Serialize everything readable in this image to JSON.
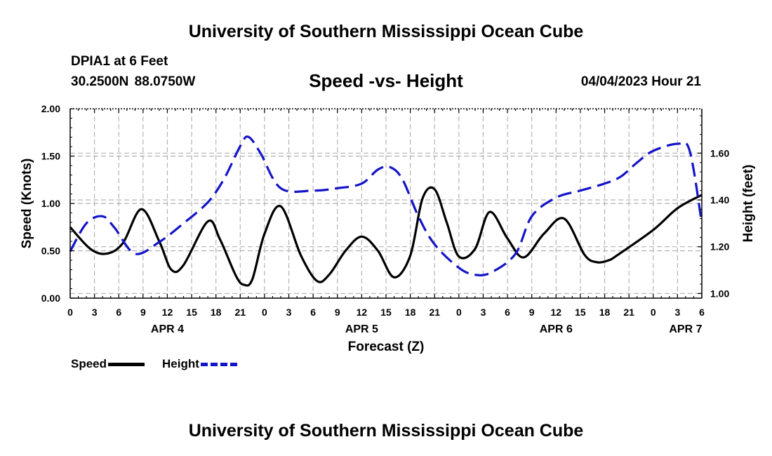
{
  "header": {
    "main_title": "University of Southern Mississippi Ocean Cube",
    "station_name": "DPIA1 at 6 Feet",
    "station_coords": "30.2500N  88.0750W",
    "chart_title": "Speed -vs- Height",
    "datetime": "04/04/2023 Hour 21"
  },
  "footer": {
    "title": "University of Southern Mississippi Ocean Cube"
  },
  "legend": {
    "speed_label": "Speed",
    "height_label": "Height"
  },
  "colors": {
    "speed": "#000000",
    "height": "#1414c8",
    "grid": "#b4b4b4"
  },
  "chart_data": {
    "type": "line",
    "title": "Speed -vs- Height",
    "xlabel": "Forecast (Z)",
    "ylabel_left": "Speed (Knots)",
    "ylabel_right": "Height (feet)",
    "x_unit": "hours from APR 4 00Z",
    "xlim": [
      0,
      78
    ],
    "ylim_left": [
      0,
      2
    ],
    "ylim_right": [
      0.98,
      1.79
    ],
    "x_tick_values": [
      0,
      3,
      6,
      9,
      12,
      15,
      18,
      21,
      24,
      27,
      30,
      33,
      36,
      39,
      42,
      45,
      48,
      51,
      54,
      57,
      60,
      63,
      66,
      69,
      72,
      75,
      78
    ],
    "x_tick_labels": [
      "0",
      "3",
      "6",
      "9",
      "12",
      "15",
      "18",
      "21",
      "0",
      "3",
      "6",
      "9",
      "12",
      "15",
      "18",
      "21",
      "0",
      "3",
      "6",
      "9",
      "12",
      "15",
      "18",
      "21",
      "0",
      "3",
      "6"
    ],
    "day_labels": [
      {
        "x": 12,
        "label": "APR 4"
      },
      {
        "x": 36,
        "label": "APR 5"
      },
      {
        "x": 60,
        "label": "APR 6"
      },
      {
        "x": 76,
        "label": "APR 7"
      }
    ],
    "y_left_ticks": [
      0,
      0.5,
      1.0,
      1.5,
      2.0
    ],
    "y_left_tick_labels": [
      "0.00",
      "0.50",
      "1.00",
      "1.50",
      "2.00"
    ],
    "y_right_ticks": [
      1.0,
      1.2,
      1.4,
      1.6
    ],
    "y_right_tick_labels": [
      "1.00",
      "1.20",
      "1.40",
      "1.60"
    ],
    "grid": true,
    "series": [
      {
        "name": "Speed",
        "axis": "left",
        "style": "solid",
        "x": [
          0,
          2.5,
          4.5,
          6.5,
          8.8,
          11,
          12.5,
          14,
          17,
          18.5,
          20.5,
          21.5,
          22.5,
          24,
          26,
          28.5,
          30.5,
          32,
          34,
          36,
          38,
          40,
          42,
          43.5,
          45,
          46.5,
          48,
          50,
          51.8,
          54,
          56,
          58.5,
          61,
          63.5,
          65,
          66.5,
          67.5,
          72,
          75,
          78
        ],
        "y": [
          0.75,
          0.52,
          0.47,
          0.58,
          0.94,
          0.6,
          0.3,
          0.35,
          0.81,
          0.62,
          0.23,
          0.14,
          0.2,
          0.68,
          0.97,
          0.45,
          0.18,
          0.25,
          0.5,
          0.65,
          0.5,
          0.22,
          0.45,
          1.05,
          1.15,
          0.8,
          0.44,
          0.52,
          0.91,
          0.63,
          0.43,
          0.68,
          0.84,
          0.46,
          0.38,
          0.4,
          0.45,
          0.72,
          0.95,
          1.09
        ]
      },
      {
        "name": "Height",
        "axis": "right",
        "style": "dashed",
        "x": [
          0,
          2,
          4,
          5.5,
          8,
          11,
          14,
          17,
          19,
          21,
          22,
          23.5,
          26,
          30,
          33,
          36,
          38,
          39.5,
          41,
          43,
          45,
          48,
          50,
          52,
          55,
          57,
          60,
          63,
          66,
          68,
          70,
          72,
          75,
          76.5,
          78
        ],
        "y": [
          1.18,
          1.3,
          1.33,
          1.28,
          1.17,
          1.22,
          1.3,
          1.39,
          1.49,
          1.63,
          1.67,
          1.6,
          1.45,
          1.44,
          1.45,
          1.47,
          1.53,
          1.54,
          1.49,
          1.33,
          1.21,
          1.11,
          1.08,
          1.09,
          1.17,
          1.33,
          1.41,
          1.44,
          1.47,
          1.5,
          1.56,
          1.61,
          1.64,
          1.61,
          1.3
        ]
      }
    ]
  }
}
